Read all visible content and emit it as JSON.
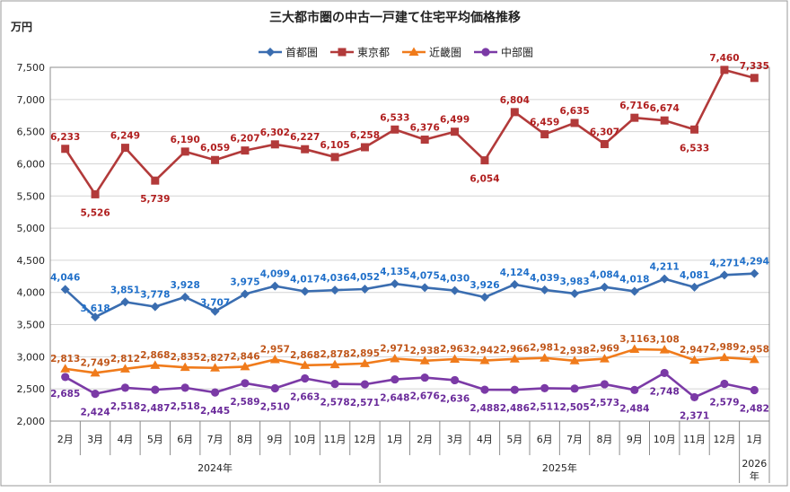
{
  "chart_data": {
    "type": "line",
    "title": "三大都市圏の中古一戸建て住宅平均価格推移",
    "ylabel": "万円",
    "ylim": [
      2000,
      7500
    ],
    "ystep": 500,
    "y_tick_labels": [
      "2,000",
      "2,500",
      "3,000",
      "3,500",
      "4,000",
      "4,500",
      "5,000",
      "5,500",
      "6,000",
      "6,500",
      "7,000",
      "7,500"
    ],
    "categories": [
      "2月",
      "3月",
      "4月",
      "5月",
      "6月",
      "7月",
      "8月",
      "9月",
      "10月",
      "11月",
      "12月",
      "1月",
      "2月",
      "3月",
      "4月",
      "5月",
      "6月",
      "7月",
      "8月",
      "9月",
      "10月",
      "11月",
      "12月",
      "1月"
    ],
    "year_groups": [
      {
        "label": "2024年",
        "start": 0,
        "end": 10
      },
      {
        "label": "2025年",
        "start": 11,
        "end": 22
      },
      {
        "label": "2026年",
        "start": 23,
        "end": 23
      }
    ],
    "legend_position": "top-center",
    "series": [
      {
        "name": "首都圏",
        "color": "#3a6db0",
        "label_color": "#1f6fc9",
        "marker": "diamond",
        "values": [
          4046,
          3618,
          3851,
          3778,
          3928,
          3707,
          3975,
          4099,
          4017,
          4036,
          4052,
          4135,
          4075,
          4030,
          3926,
          4124,
          4039,
          3983,
          4084,
          4018,
          4211,
          4081,
          4271,
          4294
        ],
        "labels": [
          "4,046",
          "3,618",
          "3,851",
          "3,778",
          "3,928",
          "3,707",
          "3,975",
          "4,099",
          "4,017",
          "4,036",
          "4,052",
          "4,135",
          "4,075",
          "4,030",
          "3,926",
          "4,124",
          "4,039",
          "3,983",
          "4,084",
          "4,018",
          "4,211",
          "4,081",
          "4,271",
          "4,294"
        ]
      },
      {
        "name": "東京都",
        "color": "#b23a3a",
        "label_color": "#b01e1e",
        "marker": "square",
        "values": [
          6233,
          5526,
          6249,
          5739,
          6190,
          6059,
          6207,
          6302,
          6227,
          6105,
          6258,
          6533,
          6376,
          6499,
          6054,
          6804,
          6459,
          6635,
          6307,
          6716,
          6674,
          6533,
          7460,
          7335
        ],
        "labels": [
          "6,233",
          "5,526",
          "6,249",
          "5,739",
          "6,190",
          "6,059",
          "6,207",
          "6,302",
          "6,227",
          "6,105",
          "6,258",
          "6,533",
          "6,376",
          "6,499",
          "6,054",
          "6,804",
          "6,459",
          "6,635",
          "6,307",
          "6,716",
          "6,674",
          "6,533",
          "7,460",
          "7,335"
        ]
      },
      {
        "name": "近畿圏",
        "color": "#f07b1b",
        "label_color": "#c0561a",
        "marker": "triangle",
        "values": [
          2813,
          2749,
          2812,
          2868,
          2835,
          2827,
          2846,
          2957,
          2868,
          2878,
          2895,
          2971,
          2938,
          2963,
          2942,
          2966,
          2981,
          2938,
          2969,
          3116,
          3108,
          2947,
          2989,
          2958
        ],
        "labels": [
          "2,813",
          "2,749",
          "2,812",
          "2,868",
          "2,835",
          "2,827",
          "2,846",
          "2,957",
          "2,868",
          "2,878",
          "2,895",
          "2,971",
          "2,938",
          "2,963",
          "2,942",
          "2,966",
          "2,981",
          "2,938",
          "2,969",
          "3,116",
          "3,108",
          "2,947",
          "2,989",
          "2,958"
        ]
      },
      {
        "name": "中部圏",
        "color": "#7b3aa6",
        "label_color": "#6a2a9a",
        "marker": "circle",
        "values": [
          2685,
          2424,
          2518,
          2487,
          2518,
          2445,
          2589,
          2510,
          2663,
          2578,
          2571,
          2648,
          2676,
          2636,
          2488,
          2486,
          2511,
          2505,
          2573,
          2484,
          2748,
          2371,
          2579,
          2482
        ],
        "labels": [
          "2,685",
          "2,424",
          "2,518",
          "2,487",
          "2,518",
          "2,445",
          "2,589",
          "2,510",
          "2,663",
          "2,578",
          "2,571",
          "2,648",
          "2,676",
          "2,636",
          "2,488",
          "2,486",
          "2,511",
          "2,505",
          "2,573",
          "2,484",
          "2,748",
          "2,371",
          "2,579",
          "2,482"
        ]
      }
    ]
  }
}
